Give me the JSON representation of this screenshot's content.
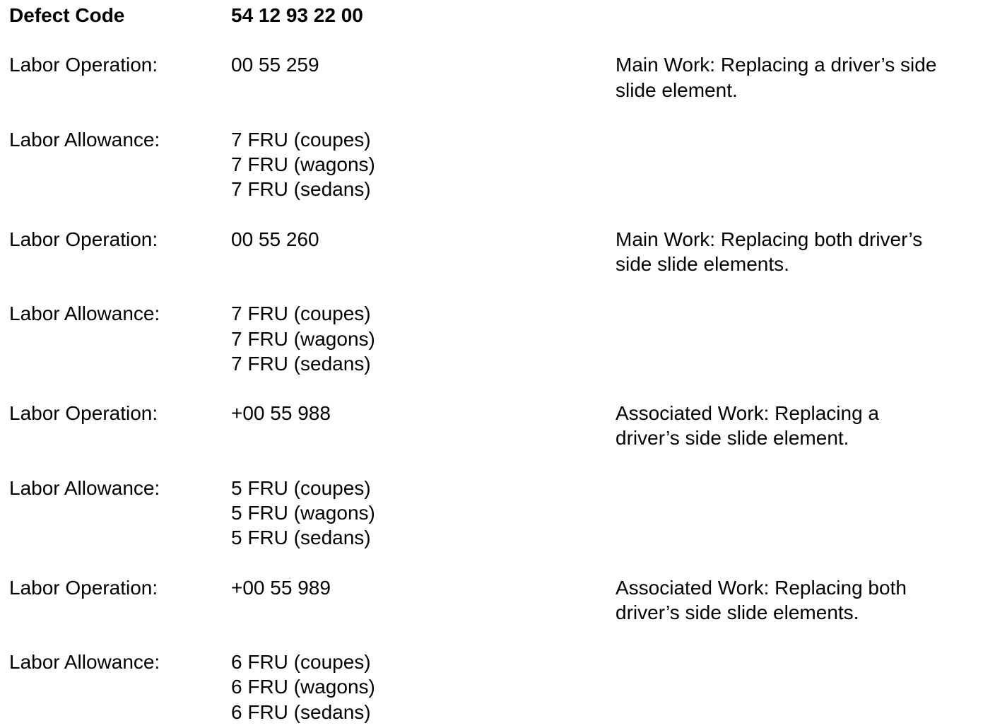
{
  "header": {
    "label": "Defect Code",
    "value": "54 12 93 22 00"
  },
  "rows": [
    {
      "label": "Labor Operation:",
      "values": [
        "00 55 259"
      ],
      "description": [
        "Main Work: Replacing a driver’s side",
        "slide element."
      ]
    },
    {
      "label": "Labor Allowance:",
      "values": [
        "7 FRU (coupes)",
        "7 FRU (wagons)",
        "7 FRU (sedans)"
      ],
      "description": []
    },
    {
      "label": "Labor Operation:",
      "values": [
        "00 55 260"
      ],
      "description": [
        "Main Work: Replacing both driver’s",
        "side slide elements."
      ]
    },
    {
      "label": "Labor Allowance:",
      "values": [
        "7 FRU (coupes)",
        "7 FRU (wagons)",
        "7 FRU (sedans)"
      ],
      "description": []
    },
    {
      "label": "Labor Operation:",
      "values": [
        "+00 55 988"
      ],
      "description": [
        "Associated Work: Replacing a",
        "driver’s side slide element."
      ]
    },
    {
      "label": "Labor Allowance:",
      "values": [
        "5 FRU (coupes)",
        "5 FRU (wagons)",
        "5 FRU (sedans)"
      ],
      "description": []
    },
    {
      "label": "Labor Operation:",
      "values": [
        "+00 55 989"
      ],
      "description": [
        "Associated Work: Replacing both",
        "driver’s side slide elements."
      ]
    },
    {
      "label": "Labor Allowance:",
      "values": [
        "6 FRU (coupes)",
        "6 FRU (wagons)",
        "6 FRU (sedans)"
      ],
      "description": []
    }
  ]
}
